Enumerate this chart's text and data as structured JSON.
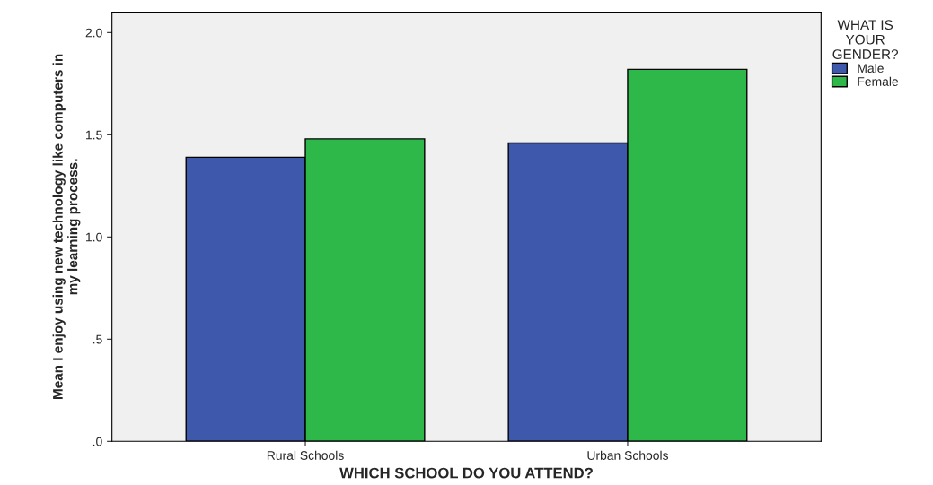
{
  "chart_data": {
    "type": "bar",
    "xlabel": "WHICH SCHOOL DO YOU ATTEND?",
    "ylabel": "Mean I enjoy using new technology like computers in my learning process.",
    "legend_title": "WHAT IS\nYOUR\nGENDER?",
    "categories": [
      "Rural Schools",
      "Urban Schools"
    ],
    "series": [
      {
        "name": "Male",
        "color": "#3e58ac",
        "values": [
          1.39,
          1.46
        ]
      },
      {
        "name": "Female",
        "color": "#2fb84a",
        "values": [
          1.48,
          1.82
        ]
      }
    ],
    "ylim": [
      0,
      2.1
    ],
    "yticks": [
      {
        "value": 0,
        "label": ".0"
      },
      {
        "value": 0.5,
        "label": ".5"
      },
      {
        "value": 1.0,
        "label": "1.0"
      },
      {
        "value": 1.5,
        "label": "1.5"
      },
      {
        "value": 2.0,
        "label": "2.0"
      }
    ],
    "grid": false,
    "legend": "right"
  }
}
